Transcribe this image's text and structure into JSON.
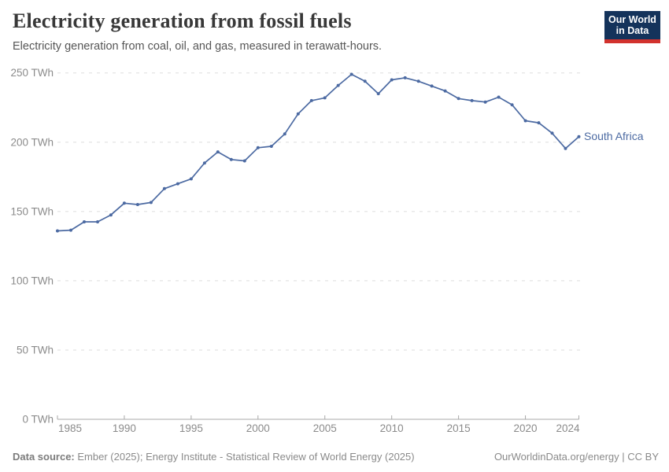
{
  "logo": {
    "line1": "Our World",
    "line2": "in Data"
  },
  "footer": {
    "source_label": "Data source:",
    "source_text": "Ember (2025); Energy Institute - Statistical Review of World Energy (2025)",
    "right_text": "OurWorldinData.org/energy | CC BY"
  },
  "colors": {
    "line": "#4c6aa2",
    "series_label": "#4c6aa2",
    "grid": "#dedede",
    "axis": "#a8a8a8",
    "tick_text": "#8b8b8b",
    "title": "#383838",
    "subtitle": "#565656",
    "logo_bg": "#14335b",
    "logo_red": "#d2322d"
  },
  "chart_data": {
    "type": "line",
    "title": "Electricity generation from fossil fuels",
    "subtitle": "Electricity generation from coal, oil, and gas, measured in terawatt-hours.",
    "xlabel": "",
    "ylabel": "",
    "unit": "TWh",
    "grid": "horizontal-dashed",
    "legend_position": "end-of-line-label",
    "xlim": [
      1985,
      2024
    ],
    "ylim": [
      0,
      250
    ],
    "x": [
      1985,
      1986,
      1987,
      1988,
      1989,
      1990,
      1991,
      1992,
      1993,
      1994,
      1995,
      1996,
      1997,
      1998,
      1999,
      2000,
      2001,
      2002,
      2003,
      2004,
      2005,
      2006,
      2007,
      2008,
      2009,
      2010,
      2011,
      2012,
      2013,
      2014,
      2015,
      2016,
      2017,
      2018,
      2019,
      2020,
      2021,
      2022,
      2023,
      2024
    ],
    "series": [
      {
        "name": "South Africa",
        "values": [
          136,
          136.5,
          142.5,
          142.5,
          147.5,
          156,
          155,
          156.5,
          166.5,
          170,
          173.5,
          185,
          193,
          187.5,
          186.5,
          196,
          197,
          206,
          220.5,
          230,
          232,
          241,
          249,
          244,
          235,
          245,
          246.5,
          244,
          240.5,
          237,
          231.5,
          230,
          229,
          232.5,
          227,
          215.5,
          214,
          206.5,
          195.5,
          204
        ]
      }
    ],
    "yticks": [
      {
        "value": 0,
        "label": "0 TWh"
      },
      {
        "value": 50,
        "label": "50 TWh"
      },
      {
        "value": 100,
        "label": "100 TWh"
      },
      {
        "value": 150,
        "label": "150 TWh"
      },
      {
        "value": 200,
        "label": "200 TWh"
      },
      {
        "value": 250,
        "label": "250 TWh"
      }
    ],
    "xticks": [
      {
        "value": 1985,
        "label": "1985",
        "align": "start"
      },
      {
        "value": 1990,
        "label": "1990",
        "align": "middle"
      },
      {
        "value": 1995,
        "label": "1995",
        "align": "middle"
      },
      {
        "value": 2000,
        "label": "2000",
        "align": "middle"
      },
      {
        "value": 2005,
        "label": "2005",
        "align": "middle"
      },
      {
        "value": 2010,
        "label": "2010",
        "align": "middle"
      },
      {
        "value": 2015,
        "label": "2015",
        "align": "middle"
      },
      {
        "value": 2020,
        "label": "2020",
        "align": "middle"
      },
      {
        "value": 2024,
        "label": "2024",
        "align": "end"
      }
    ]
  }
}
